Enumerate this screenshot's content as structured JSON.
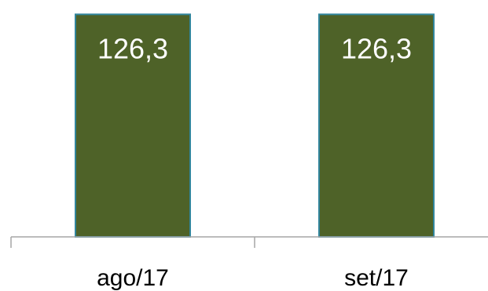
{
  "chart_data": {
    "type": "bar",
    "categories": [
      "ago/17",
      "set/17"
    ],
    "values": [
      126.3,
      126.3
    ],
    "data_labels": [
      "126,3",
      "126,3"
    ],
    "title": "",
    "xlabel": "",
    "ylabel": "",
    "ylim": [
      0,
      130
    ],
    "grid": false,
    "legend": "none",
    "colors": {
      "bar_fill": "#4e6228",
      "bar_stroke": "#31859c",
      "axis": "#a6a6a6",
      "label_text": "#ffffff",
      "tick_text": "#000000"
    }
  }
}
